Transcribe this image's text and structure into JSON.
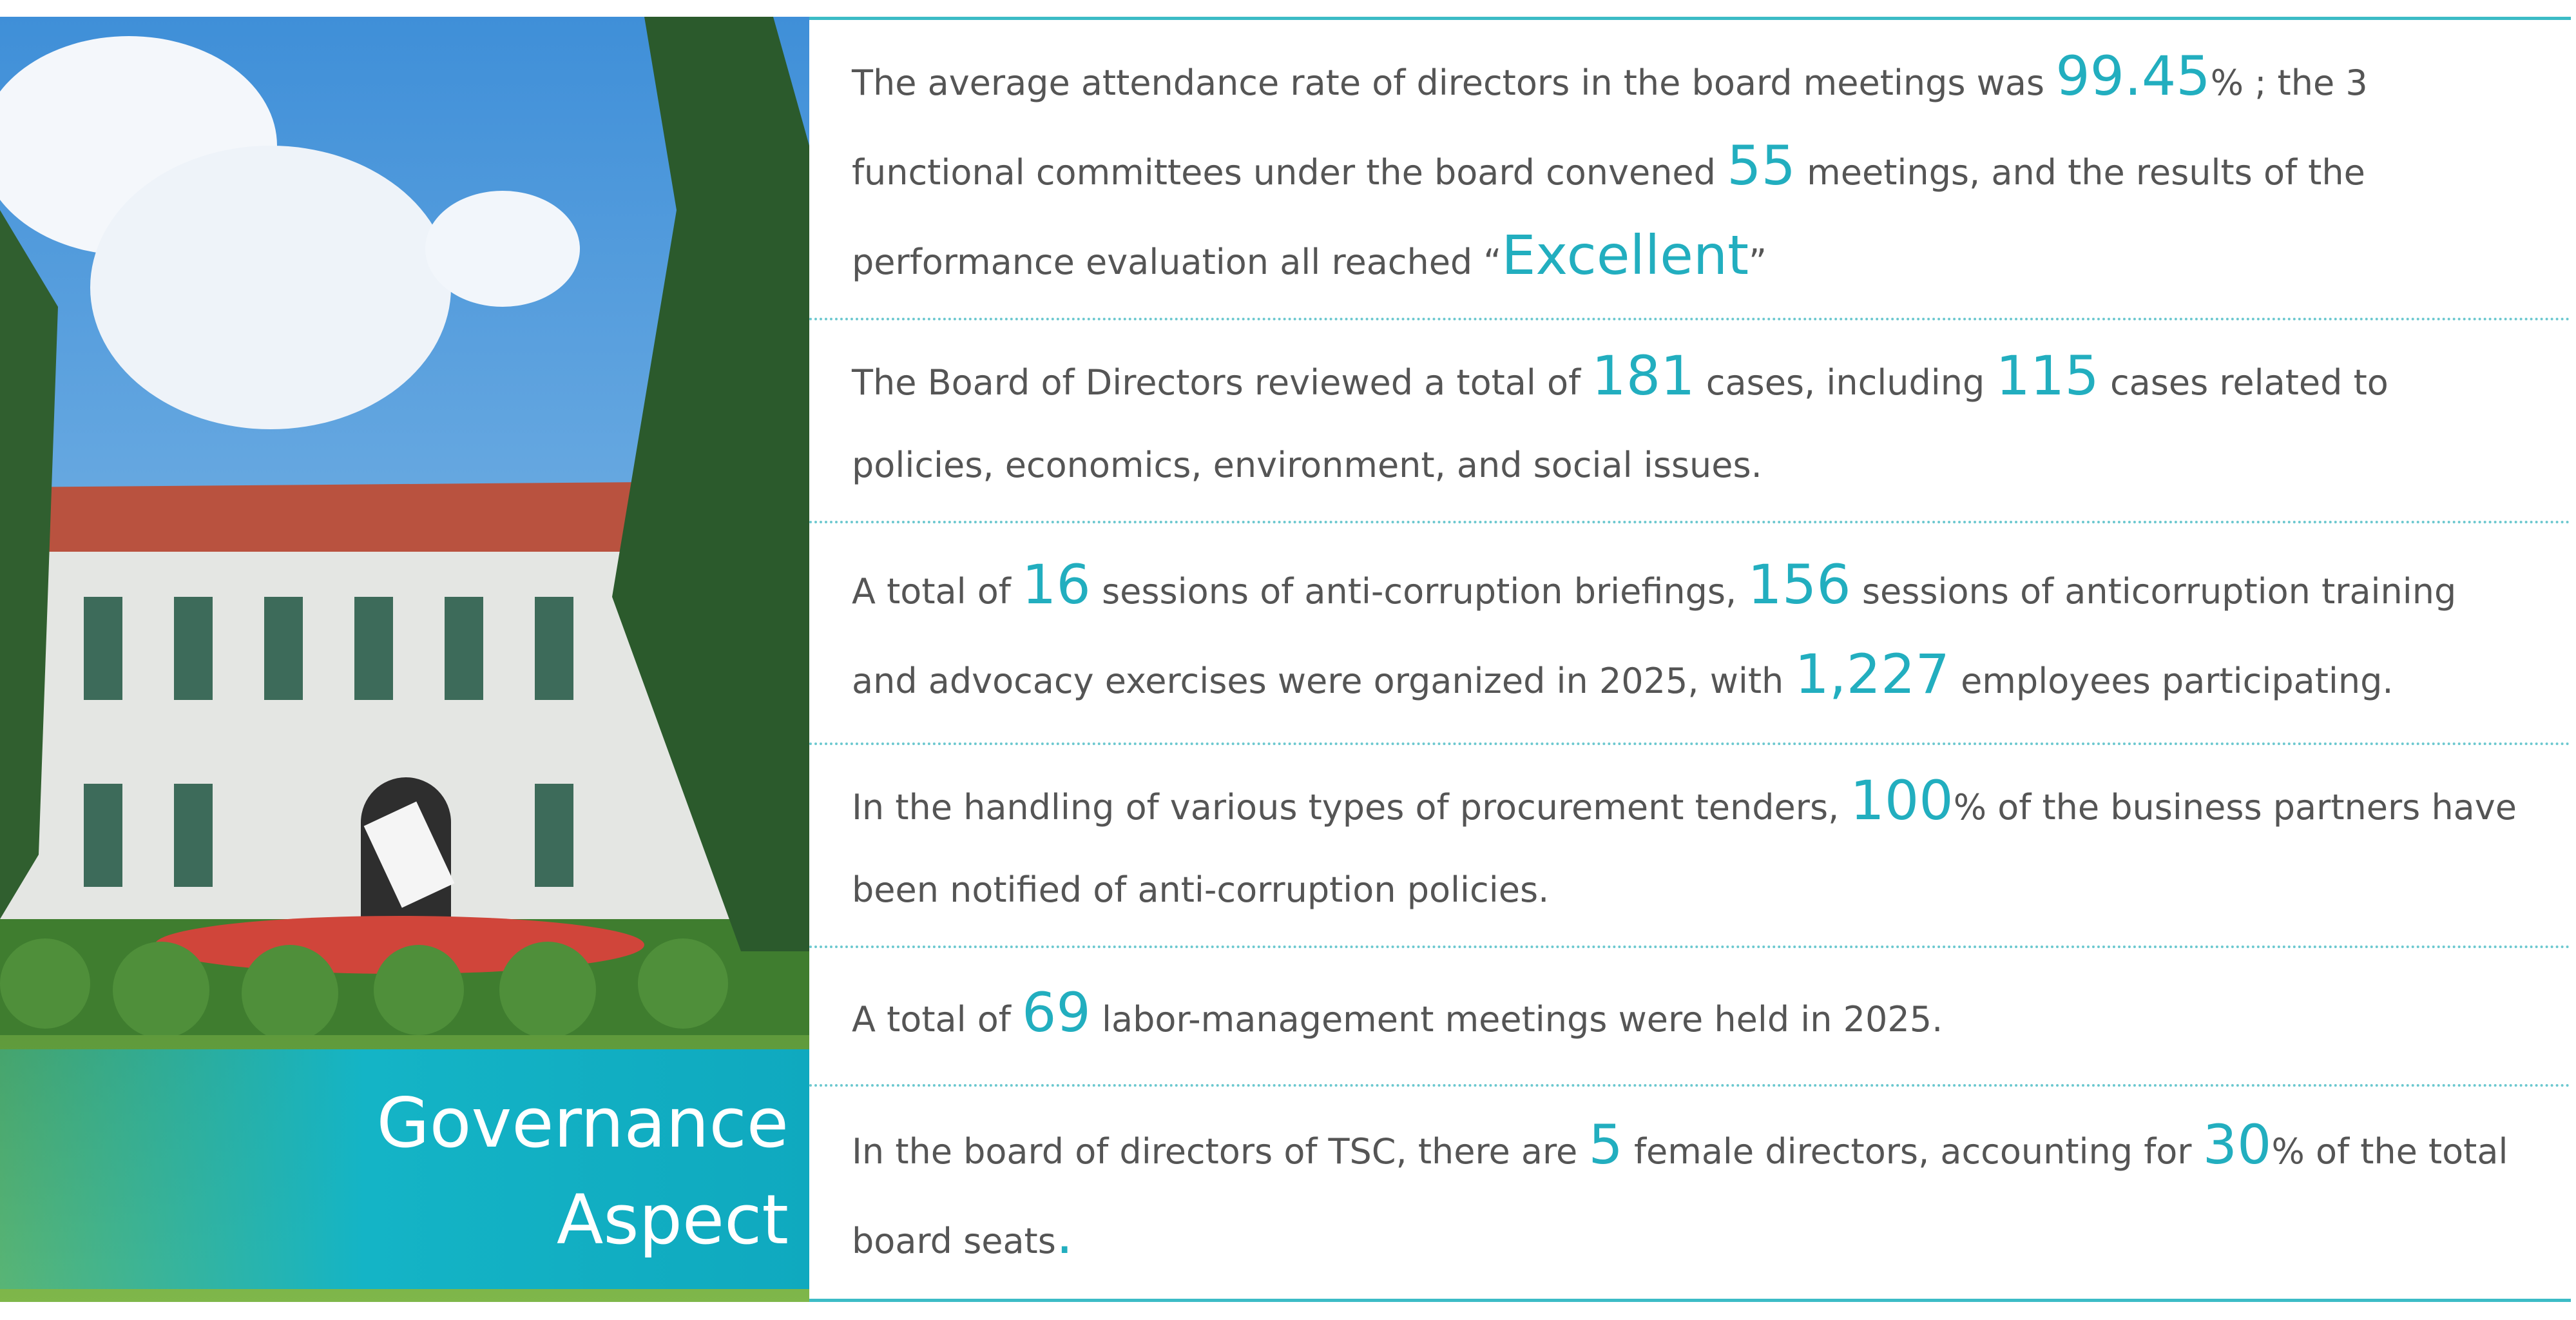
{
  "heading": [
    "Governance",
    "Aspect"
  ],
  "items": [
    {
      "segments": [
        "The average attendance rate of directors in the board meetings was ",
        "99.45",
        "% ; the 3 functional committees under the board convened ",
        "55",
        " meetings, and the results of the performance evaluation all reached “",
        "Excellent",
        "”"
      ]
    },
    {
      "segments": [
        "The Board of Directors reviewed a total of ",
        "181",
        " cases, including ",
        "115",
        " cases related to policies, economics, environment, and social issues."
      ]
    },
    {
      "segments": [
        "A total of ",
        "16",
        " sessions of anti-corruption briefings, ",
        "156",
        " sessions of anticorruption training and advocacy exercises were organized in 2025, with ",
        "1,227",
        " employees participating."
      ]
    },
    {
      "segments": [
        "In the handling of various types of procurement tenders, ",
        "100",
        "% of the business partners have been notified of anti-corruption policies."
      ]
    },
    {
      "segments": [
        "A total of  ",
        "69",
        " labor-management meetings were held in 2025."
      ]
    },
    {
      "segments": [
        "In the board of directors of TSC, there are ",
        "5",
        " female directors, accounting for ",
        "30",
        "% of the total board seats",
        "."
      ]
    }
  ]
}
